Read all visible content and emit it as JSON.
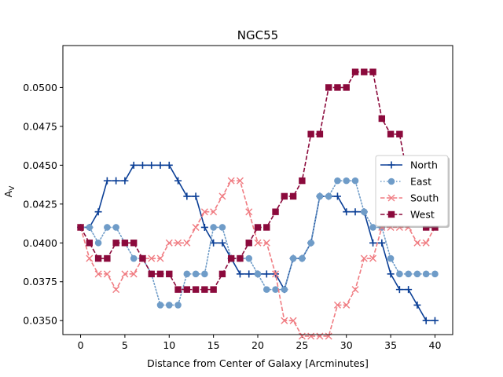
{
  "chart_data": {
    "type": "line",
    "title": "NGC55",
    "xlabel": "Distance from Center of Galaxy [Arcminutes]",
    "ylabel": "A",
    "ylabel_sub": "V",
    "xlim": [
      -2,
      42
    ],
    "ylim": [
      0.0341,
      0.0527
    ],
    "xticks": [
      0,
      5,
      10,
      15,
      20,
      25,
      30,
      35,
      40
    ],
    "yticks": [
      0.035,
      0.0375,
      0.04,
      0.0425,
      0.045,
      0.0475,
      0.05
    ],
    "ytick_labels": [
      "0.0350",
      "0.0375",
      "0.0400",
      "0.0425",
      "0.0450",
      "0.0475",
      "0.0500"
    ],
    "legend_position": "center-right",
    "x": [
      0,
      1,
      2,
      3,
      4,
      5,
      6,
      7,
      8,
      9,
      10,
      11,
      12,
      13,
      14,
      15,
      16,
      17,
      18,
      19,
      20,
      21,
      22,
      23,
      24,
      25,
      26,
      27,
      28,
      29,
      30,
      31,
      32,
      33,
      34,
      35,
      36,
      37,
      38,
      39,
      40
    ],
    "series": [
      {
        "name": "North",
        "color": "#0b3f96",
        "marker": "plus",
        "line": "solid",
        "values": [
          0.041,
          0.041,
          0.042,
          0.044,
          0.044,
          0.044,
          0.045,
          0.045,
          0.045,
          0.045,
          0.045,
          0.044,
          0.043,
          0.043,
          0.041,
          0.04,
          0.04,
          0.039,
          0.038,
          0.038,
          0.038,
          0.038,
          0.038,
          0.037,
          0.039,
          0.039,
          0.04,
          0.043,
          0.043,
          0.043,
          0.042,
          0.042,
          0.042,
          0.04,
          0.04,
          0.038,
          0.037,
          0.037,
          0.036,
          0.035,
          0.035
        ]
      },
      {
        "name": "East",
        "color": "#6f9cc8",
        "marker": "circle",
        "line": "dotted",
        "values": [
          0.041,
          0.041,
          0.04,
          0.041,
          0.041,
          0.04,
          0.039,
          0.039,
          0.038,
          0.036,
          0.036,
          0.036,
          0.038,
          0.038,
          0.038,
          0.041,
          0.041,
          0.039,
          0.039,
          0.039,
          0.038,
          0.037,
          0.037,
          0.037,
          0.039,
          0.039,
          0.04,
          0.043,
          0.043,
          0.044,
          0.044,
          0.044,
          0.042,
          0.041,
          0.041,
          0.039,
          0.038,
          0.038,
          0.038,
          0.038,
          0.038
        ]
      },
      {
        "name": "South",
        "color": "#f07c82",
        "marker": "x",
        "line": "dashed",
        "values": [
          0.041,
          0.039,
          0.038,
          0.038,
          0.037,
          0.038,
          0.038,
          0.039,
          0.039,
          0.039,
          0.04,
          0.04,
          0.04,
          0.041,
          0.042,
          0.042,
          0.043,
          0.044,
          0.044,
          0.042,
          0.04,
          0.04,
          0.038,
          0.035,
          0.035,
          0.034,
          0.034,
          0.034,
          0.034,
          0.036,
          0.036,
          0.037,
          0.039,
          0.039,
          0.041,
          0.041,
          0.041,
          0.041,
          0.04,
          0.04,
          0.041
        ]
      },
      {
        "name": "West",
        "color": "#8b0a3c",
        "marker": "square",
        "line": "dashed",
        "values": [
          0.041,
          0.04,
          0.039,
          0.039,
          0.04,
          0.04,
          0.04,
          0.039,
          0.038,
          0.038,
          0.038,
          0.037,
          0.037,
          0.037,
          0.037,
          0.037,
          0.038,
          0.039,
          0.039,
          0.04,
          0.041,
          0.041,
          0.042,
          0.043,
          0.043,
          0.044,
          0.047,
          0.047,
          0.05,
          0.05,
          0.05,
          0.051,
          0.051,
          0.051,
          0.048,
          0.047,
          0.047,
          0.044,
          0.044,
          0.041,
          0.041
        ]
      }
    ]
  }
}
